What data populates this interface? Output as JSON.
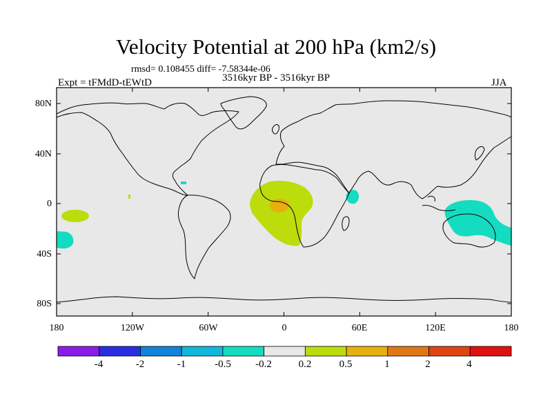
{
  "figure": {
    "title": "Velocity Potential at 200 hPa (km2/s)",
    "stats": "rmsd= 0.108455 diff= -7.58344e-06",
    "experiment": "Expt = tFMdD-tEWtD",
    "period": "3516kyr BP - 3516kyr BP",
    "season": "JJA"
  },
  "axes": {
    "lat_ticks": [
      "80N",
      "40N",
      "0",
      "40S",
      "80S"
    ],
    "lon_ticks": [
      "180",
      "120W",
      "60W",
      "0",
      "60E",
      "120E",
      "180"
    ]
  },
  "colorbar": {
    "labels": [
      "-4",
      "-2",
      "-1",
      "-0.5",
      "-0.2",
      "0.2",
      "0.5",
      "1",
      "2",
      "4"
    ],
    "colors": [
      "#8a1ee8",
      "#2a2ee0",
      "#0f84d8",
      "#12b8dc",
      "#14dcc0",
      "#e8e8e8",
      "#bcdc0c",
      "#e8b00c",
      "#e07818",
      "#e04410",
      "#e01010"
    ]
  },
  "chart_data": {
    "type": "map",
    "projection": "cylindrical equidistant",
    "lon_range": [
      -180,
      180
    ],
    "lat_range": [
      -90,
      90
    ],
    "background_color": "#e8e8e8",
    "anomaly_regions": [
      {
        "name": "Central Atlantic / West Africa",
        "category": "0.2 to 0.5",
        "center_lon": 4,
        "center_lat": -3,
        "color": "#bcdc0c"
      },
      {
        "name": "Gulf of Guinea core",
        "category": "0.5 to 1",
        "center_lon": -4,
        "center_lat": -1,
        "color": "#e8b00c"
      },
      {
        "name": "Central Pacific",
        "category": "0.2 to 0.5",
        "center_lon": -163,
        "center_lat": -9,
        "color": "#bcdc0c"
      },
      {
        "name": "South Pacific",
        "category": "-0.5 to -0.2",
        "center_lon": -174,
        "center_lat": -28,
        "color": "#14dcc0"
      },
      {
        "name": "Western Indian Ocean",
        "category": "-0.5 to -0.2",
        "center_lon": 55,
        "center_lat": 6,
        "color": "#14dcc0"
      },
      {
        "name": "Maritime Continent / Australia",
        "category": "-0.5 to -0.2",
        "center_lon": 146,
        "center_lat": -12,
        "color": "#14dcc0"
      },
      {
        "name": "Caribbean",
        "category": "-0.5 to -0.2",
        "center_lon": -78,
        "center_lat": 17,
        "color": "#14dcc0"
      }
    ]
  }
}
